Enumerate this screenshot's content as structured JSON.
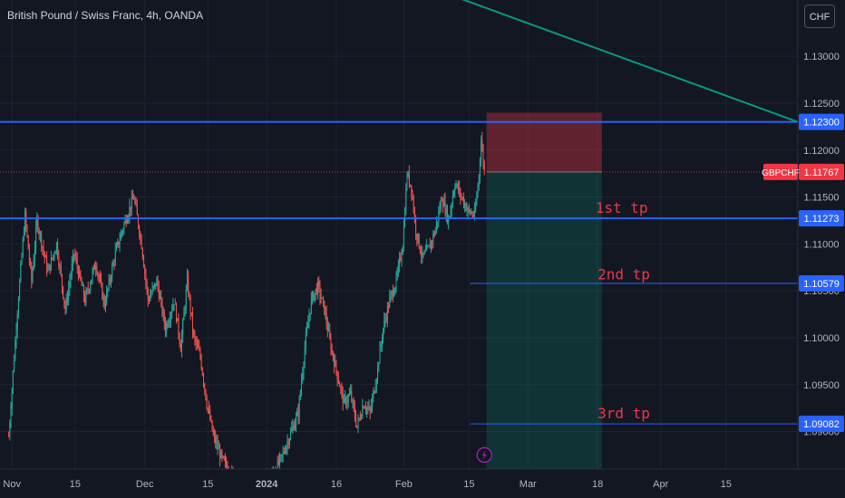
{
  "header": {
    "symbol_title": "British Pound / Swiss Franc, 4h, OANDA",
    "currency_button": "CHF"
  },
  "price_axis": {
    "ticks": [
      {
        "value": 1.13,
        "label": "1.13000"
      },
      {
        "value": 1.125,
        "label": "1.12500"
      },
      {
        "value": 1.12,
        "label": "1.12000"
      },
      {
        "value": 1.115,
        "label": "1.11500"
      },
      {
        "value": 1.11,
        "label": "1.11000"
      },
      {
        "value": 1.105,
        "label": "1.10500"
      },
      {
        "value": 1.1,
        "label": "1.10000"
      },
      {
        "value": 1.095,
        "label": "1.09500"
      },
      {
        "value": 1.09,
        "label": "1.09000"
      }
    ]
  },
  "time_axis": {
    "ticks": [
      {
        "label": "Nov",
        "bar": 3
      },
      {
        "label": "15",
        "bar": 61
      },
      {
        "label": "Dec",
        "bar": 125
      },
      {
        "label": "15",
        "bar": 183
      },
      {
        "label": "2024",
        "bar": 237
      },
      {
        "label": "16",
        "bar": 301
      },
      {
        "label": "Feb",
        "bar": 363
      },
      {
        "label": "15",
        "bar": 423
      },
      {
        "label": "Mar",
        "bar": 477
      },
      {
        "label": "18",
        "bar": 541
      },
      {
        "label": "Apr",
        "bar": 599
      },
      {
        "label": "15",
        "bar": 659
      }
    ]
  },
  "chart_data": {
    "type": "candlestick",
    "symbol": "GBPCHF",
    "interval": "4h",
    "y_range": [
      1.086,
      1.136
    ],
    "x_range_bars": [
      -8,
      725
    ],
    "colors": {
      "up": "#26a69a",
      "down": "#ef5350",
      "horizontal_level": "#2962ff",
      "trendline": "#089981",
      "stop_zone": "rgba(242,54,69,0.35)",
      "target_zone": "rgba(8,153,129,0.22)",
      "last_price_badge": "#f23645",
      "tp_text": "#f23645"
    },
    "price_path": [
      {
        "bar": 0,
        "price": 1.0895
      },
      {
        "bar": 8,
        "price": 1.103
      },
      {
        "bar": 15,
        "price": 1.113
      },
      {
        "bar": 21,
        "price": 1.106
      },
      {
        "bar": 26,
        "price": 1.1125
      },
      {
        "bar": 36,
        "price": 1.107
      },
      {
        "bar": 44,
        "price": 1.11
      },
      {
        "bar": 52,
        "price": 1.103
      },
      {
        "bar": 60,
        "price": 1.109
      },
      {
        "bar": 70,
        "price": 1.104
      },
      {
        "bar": 80,
        "price": 1.108
      },
      {
        "bar": 88,
        "price": 1.1035
      },
      {
        "bar": 98,
        "price": 1.109
      },
      {
        "bar": 107,
        "price": 1.1125
      },
      {
        "bar": 115,
        "price": 1.115
      },
      {
        "bar": 122,
        "price": 1.11
      },
      {
        "bar": 128,
        "price": 1.104
      },
      {
        "bar": 136,
        "price": 1.106
      },
      {
        "bar": 144,
        "price": 1.101
      },
      {
        "bar": 152,
        "price": 1.104
      },
      {
        "bar": 158,
        "price": 1.099
      },
      {
        "bar": 164,
        "price": 1.106
      },
      {
        "bar": 170,
        "price": 1.1
      },
      {
        "bar": 176,
        "price": 1.098
      },
      {
        "bar": 182,
        "price": 1.093
      },
      {
        "bar": 188,
        "price": 1.0895
      },
      {
        "bar": 196,
        "price": 1.087
      },
      {
        "bar": 204,
        "price": 1.0855
      },
      {
        "bar": 212,
        "price": 1.085
      },
      {
        "bar": 220,
        "price": 1.084
      },
      {
        "bar": 230,
        "price": 1.0845
      },
      {
        "bar": 240,
        "price": 1.085
      },
      {
        "bar": 250,
        "price": 1.087
      },
      {
        "bar": 258,
        "price": 1.0895
      },
      {
        "bar": 266,
        "price": 1.092
      },
      {
        "bar": 272,
        "price": 1.099
      },
      {
        "bar": 278,
        "price": 1.104
      },
      {
        "bar": 284,
        "price": 1.1055
      },
      {
        "bar": 290,
        "price": 1.103
      },
      {
        "bar": 296,
        "price": 1.099
      },
      {
        "bar": 302,
        "price": 1.096
      },
      {
        "bar": 308,
        "price": 1.093
      },
      {
        "bar": 314,
        "price": 1.094
      },
      {
        "bar": 320,
        "price": 1.0905
      },
      {
        "bar": 326,
        "price": 1.093
      },
      {
        "bar": 332,
        "price": 1.092
      },
      {
        "bar": 338,
        "price": 1.096
      },
      {
        "bar": 344,
        "price": 1.101
      },
      {
        "bar": 350,
        "price": 1.104
      },
      {
        "bar": 356,
        "price": 1.106
      },
      {
        "bar": 362,
        "price": 1.11
      },
      {
        "bar": 366,
        "price": 1.1175
      },
      {
        "bar": 370,
        "price": 1.116
      },
      {
        "bar": 374,
        "price": 1.1115
      },
      {
        "bar": 380,
        "price": 1.1085
      },
      {
        "bar": 386,
        "price": 1.1095
      },
      {
        "bar": 392,
        "price": 1.1115
      },
      {
        "bar": 398,
        "price": 1.115
      },
      {
        "bar": 404,
        "price": 1.1125
      },
      {
        "bar": 410,
        "price": 1.1165
      },
      {
        "bar": 416,
        "price": 1.115
      },
      {
        "bar": 422,
        "price": 1.1135
      },
      {
        "bar": 428,
        "price": 1.113
      },
      {
        "bar": 432,
        "price": 1.1172
      },
      {
        "bar": 434,
        "price": 1.1215
      },
      {
        "bar": 436,
        "price": 1.1185
      },
      {
        "bar": 437,
        "price": 1.11767
      }
    ],
    "horizontal_levels": [
      {
        "price": 1.123,
        "label": "1.12300",
        "bar_start": -8,
        "bar_end": 725,
        "width": 2
      },
      {
        "price": 1.11273,
        "label": "1.11273",
        "bar_start": -8,
        "bar_end": 725,
        "width": 2
      },
      {
        "price": 1.10579,
        "label": "1.10579",
        "bar_start": 424,
        "bar_end": 725,
        "width": 1
      },
      {
        "price": 1.09082,
        "label": "1.09082",
        "bar_start": 424,
        "bar_end": 725,
        "width": 1
      }
    ],
    "last_price": {
      "symbol": "GBPCHF",
      "price": 1.11767,
      "label": "1.11767"
    },
    "trendline": {
      "start": {
        "bar": 395,
        "price": 1.137
      },
      "end": {
        "bar": 725,
        "price": 1.123
      }
    },
    "position": {
      "type": "short",
      "bar_start": 439,
      "bar_end": 545,
      "entry": 1.11767,
      "stop": 1.124,
      "target": 1.0855
    },
    "annotations": [
      {
        "text": "1st tp",
        "bar": 539,
        "price": 1.1133
      },
      {
        "text": "2nd tp",
        "bar": 541,
        "price": 1.1062
      },
      {
        "text": "3rd tp",
        "bar": 541,
        "price": 1.0914
      }
    ],
    "event_marker": {
      "bar": 437,
      "price": 1.0875,
      "icon": "lightning-icon"
    }
  }
}
